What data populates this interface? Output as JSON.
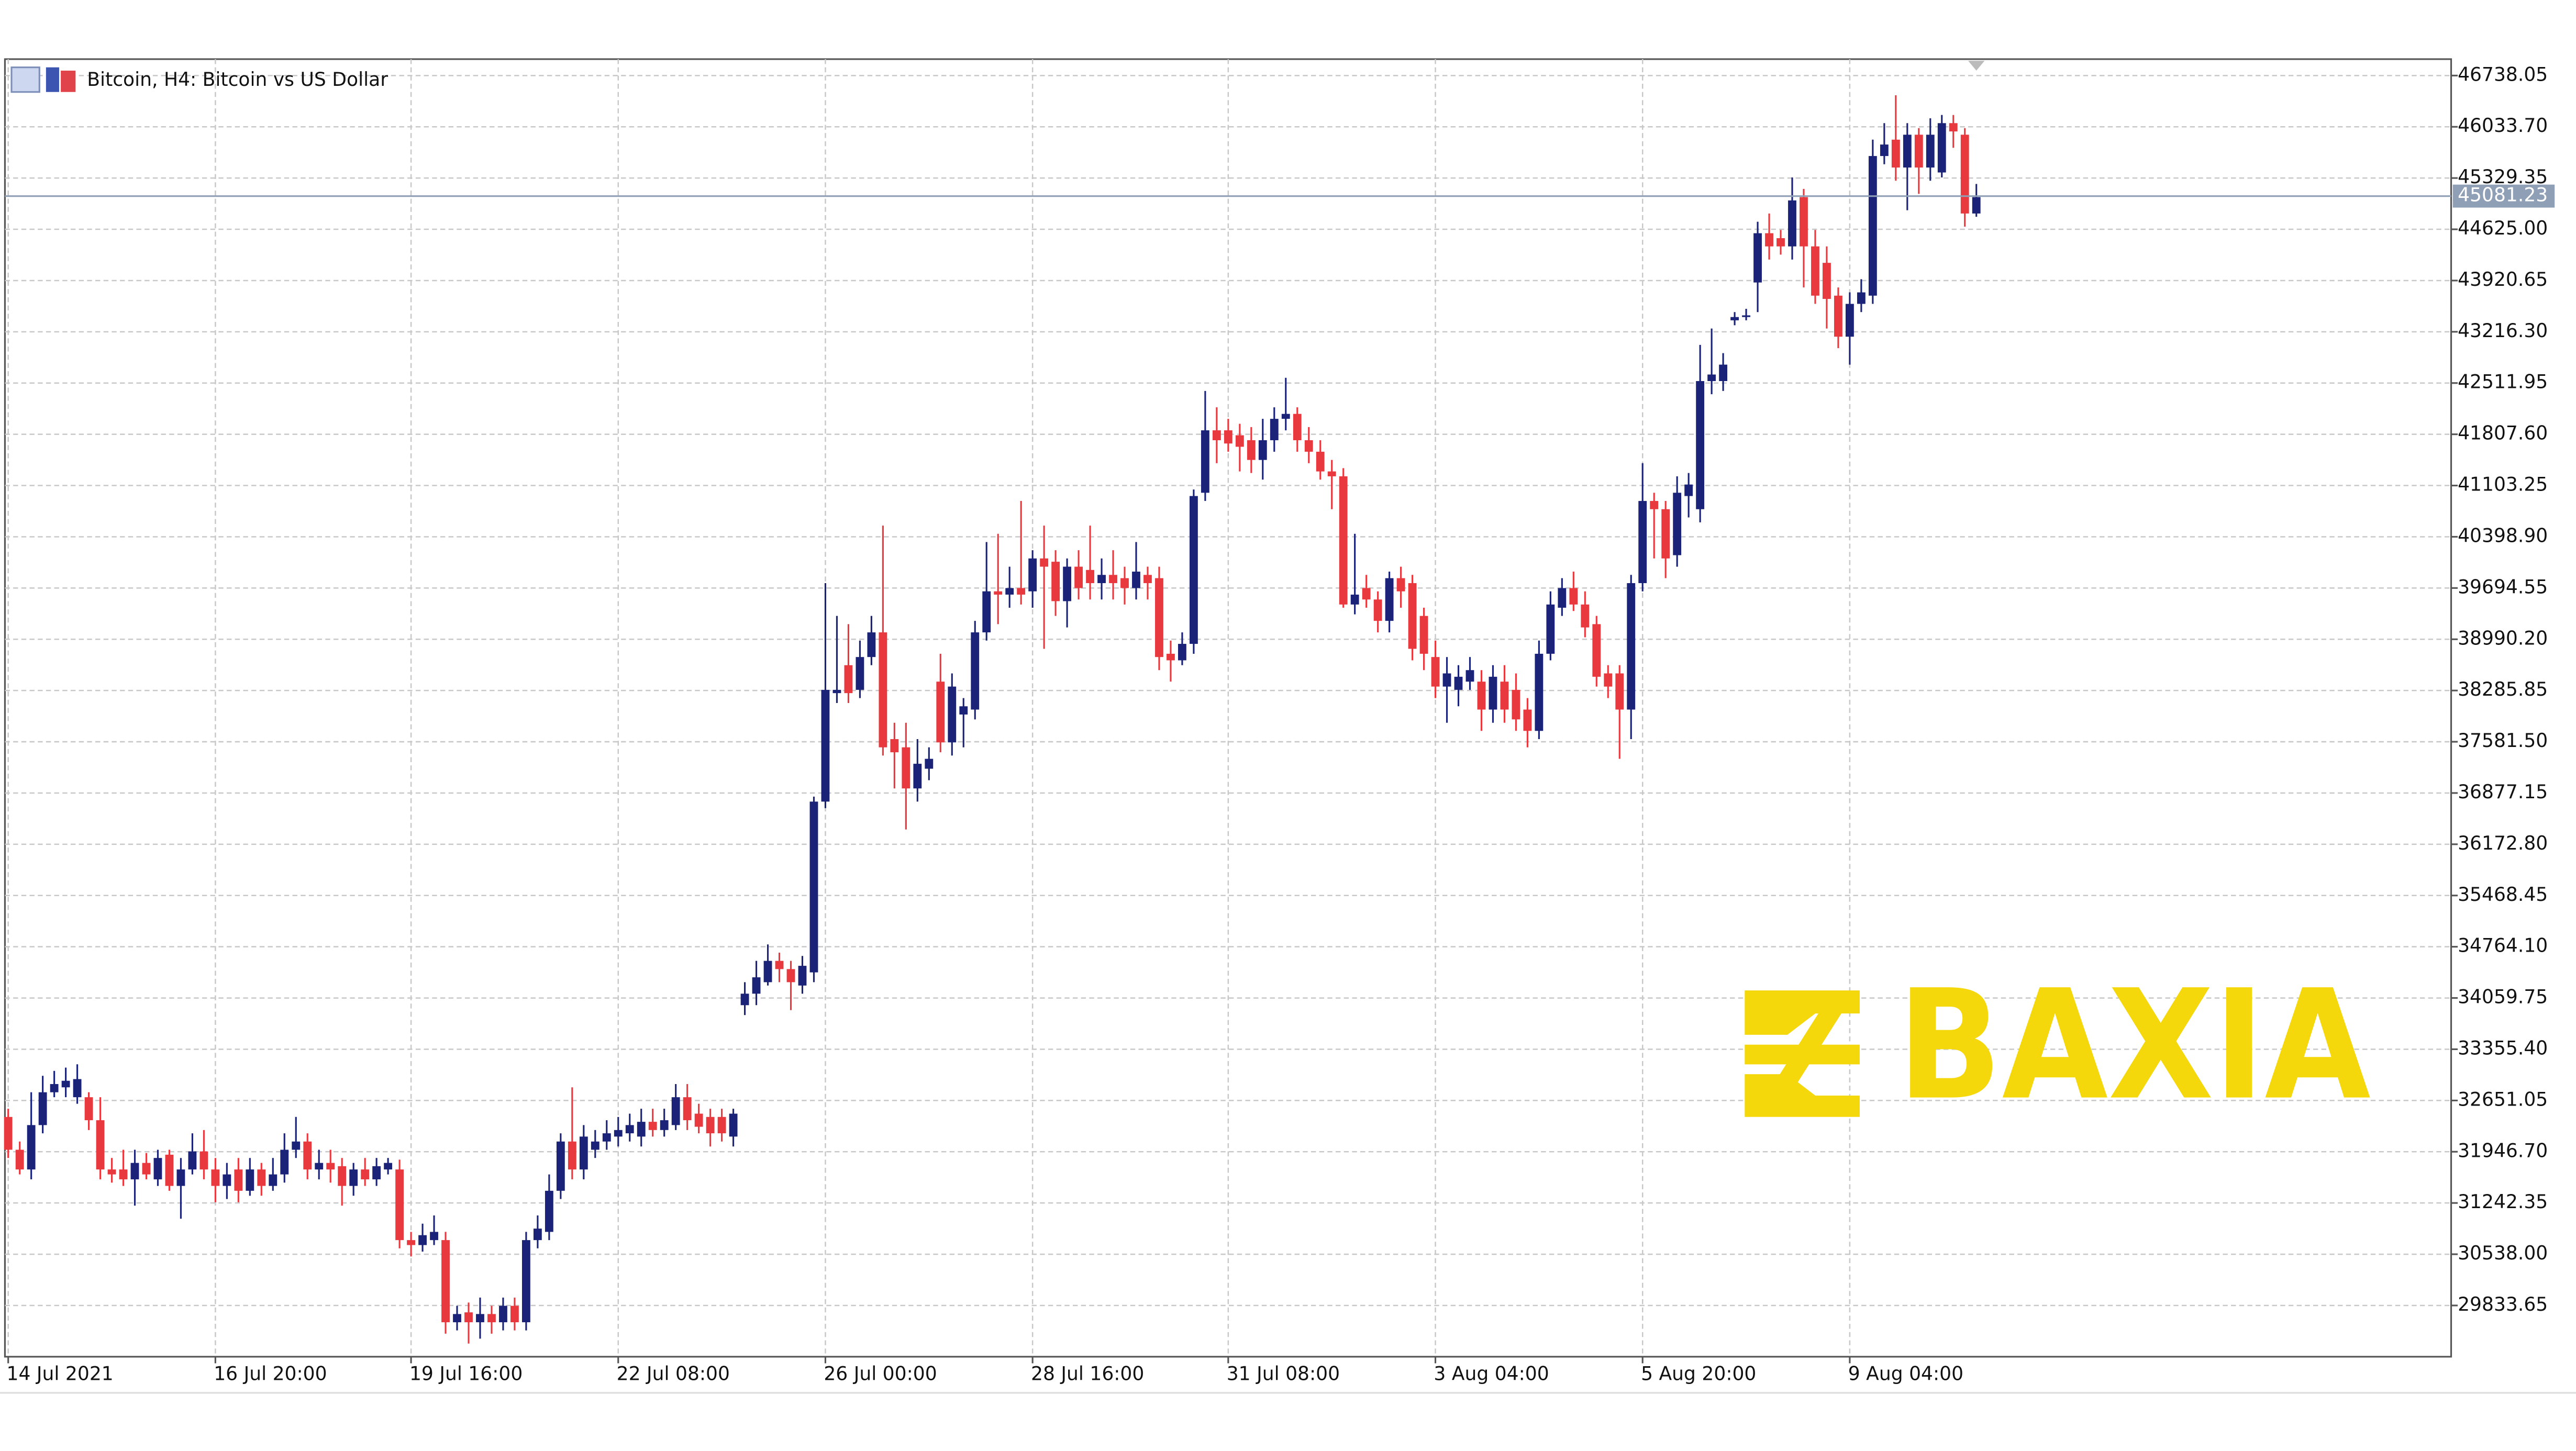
{
  "chart_data": {
    "type": "candlestick",
    "title": "Bitcoin, H4:  Bitcoin vs US Dollar",
    "watermark": "BAXIA",
    "up_color": "#1a2377",
    "down_color": "#e8393f",
    "grid": true,
    "current_price": 45081.23,
    "current_price_color": "#8f9fb6",
    "ylim": [
      29129.3,
      46963.8
    ],
    "yticks": [
      29833.65,
      {
        "value": 30538,
        "label": "30538.00"
      },
      31242.35,
      {
        "value": 31946.7,
        "label": "31946.70"
      },
      32651.05,
      {
        "value": 33355.4,
        "label": "33355.40"
      },
      34059.75,
      {
        "value": 34764.1,
        "label": "34764.10"
      },
      35468.45,
      {
        "value": 36172.8,
        "label": "36172.80"
      },
      36877.15,
      {
        "value": 37581.5,
        "label": "37581.50"
      },
      38285.85,
      {
        "value": 38990.2,
        "label": "38990.20"
      },
      39694.55,
      {
        "value": 40398.9,
        "label": "40398.90"
      },
      41103.25,
      {
        "value": 41807.6,
        "label": "41807.60"
      },
      42511.95,
      {
        "value": 43216.3,
        "label": "43216.30"
      },
      43920.65,
      {
        "value": 44625,
        "label": "44625.00"
      },
      45329.35,
      {
        "value": 46033.7,
        "label": "46033.70"
      },
      46738.05
    ],
    "categories": [
      "14 Jul 2021",
      null,
      null,
      null,
      null,
      null,
      null,
      null,
      null,
      null,
      null,
      null,
      null,
      null,
      null,
      null,
      null,
      null,
      "16 Jul 20:00",
      null,
      null,
      null,
      null,
      null,
      null,
      null,
      null,
      null,
      null,
      null,
      null,
      null,
      null,
      null,
      null,
      "19 Jul 16:00",
      null,
      null,
      null,
      null,
      null,
      null,
      null,
      null,
      null,
      null,
      null,
      null,
      null,
      null,
      null,
      null,
      null,
      "22 Jul 08:00",
      null,
      null,
      null,
      null,
      null,
      null,
      null,
      null,
      null,
      null,
      null,
      null,
      null,
      null,
      null,
      null,
      null,
      "26 Jul 00:00",
      null,
      null,
      null,
      null,
      null,
      null,
      null,
      null,
      null,
      null,
      null,
      null,
      null,
      null,
      null,
      null,
      null,
      "28 Jul 16:00",
      null,
      null,
      null,
      null,
      null,
      null,
      null,
      null,
      null,
      null,
      null,
      null,
      null,
      null,
      null,
      null,
      "31 Jul 08:00",
      null,
      null,
      null,
      null,
      null,
      null,
      null,
      null,
      null,
      null,
      null,
      null,
      null,
      null,
      null,
      null,
      null,
      "3 Aug 04:00",
      null,
      null,
      null,
      null,
      null,
      null,
      null,
      null,
      null,
      null,
      null,
      null,
      null,
      null,
      null,
      null,
      null,
      "5 Aug 20:00",
      null,
      null,
      null,
      null,
      null,
      null,
      null,
      null,
      null,
      null,
      null,
      null,
      null,
      null,
      null,
      null,
      null,
      "9 Aug 04:00",
      null,
      null,
      null,
      null,
      null,
      null,
      null,
      null,
      null,
      null,
      null
    ],
    "open": [
      32425,
      31974,
      31703,
      32313,
      32764,
      32832,
      32696,
      32696,
      32380,
      31703,
      31703,
      31567,
      31793,
      31567,
      31906,
      31477,
      31703,
      31951,
      31703,
      31477,
      31703,
      31410,
      31703,
      31477,
      31635,
      31974,
      32087,
      31703,
      31793,
      31748,
      31477,
      31703,
      31567,
      31703,
      31703,
      30732,
      30664,
      30732,
      30732,
      29603,
      29739,
      29603,
      29716,
      29603,
      29829,
      29603,
      30732,
      30845,
      31410,
      32087,
      31703,
      31974,
      32087,
      32155,
      32200,
      32155,
      32358,
      32245,
      32313,
      32696,
      32470,
      32425,
      32425,
      32155,
      33961,
      34119,
      34277,
      34570,
      34457,
      34231,
      34412,
      36759,
      38250,
      38634,
      38295,
      38746,
      39085,
      37618,
      37505,
      36940,
      37211,
      38408,
      37573,
      37956,
      38024,
      39085,
      39649,
      39604,
      39694,
      39649,
      40101,
      40056,
      39514,
      39988,
      39943,
      39762,
      39875,
      39830,
      39694,
      39875,
      39830,
      38791,
      38701,
      38927,
      41004,
      41862,
      41862,
      41794,
      41726,
      41455,
      41726,
      42020,
      42088,
      41726,
      41568,
      41297,
      41230,
      39468,
      39694,
      39537,
      39243,
      39830,
      39762,
      39311,
      38746,
      38340,
      38295,
      38408,
      38408,
      38024,
      38408,
      38295,
      38024,
      37731,
      38791,
      39424,
      39694,
      39468,
      39198,
      38521,
      38521,
      38024,
      39762,
      40891,
      40778,
      40146,
      40959,
      40778,
      42539,
      42539,
      43374,
      43419,
      43894,
      44571,
      44503,
      44390,
      45067,
      44390,
      44164,
      43713,
      43149,
      43600,
      43713,
      45632,
      45857,
      45474,
      45925,
      45474,
      45406,
      46084,
      45925,
      44842
    ],
    "high": [
      32538,
      32087,
      32764,
      32990,
      33058,
      33103,
      33148,
      32764,
      32696,
      31861,
      31974,
      31974,
      31929,
      31974,
      31974,
      31861,
      32200,
      32245,
      31861,
      31793,
      31861,
      31861,
      31793,
      31861,
      32200,
      32425,
      32200,
      31974,
      31974,
      31861,
      31793,
      31861,
      31861,
      31861,
      31838,
      30845,
      30958,
      31071,
      30845,
      29829,
      29874,
      29942,
      29829,
      29942,
      29942,
      30845,
      31071,
      31635,
      32200,
      32832,
      32313,
      32245,
      32380,
      32425,
      32470,
      32538,
      32538,
      32538,
      32877,
      32877,
      32606,
      32538,
      32538,
      32538,
      34277,
      34570,
      34796,
      34683,
      34570,
      34638,
      36827,
      39762,
      39311,
      39198,
      38972,
      39311,
      40552,
      37843,
      37843,
      37618,
      37505,
      38791,
      38521,
      38182,
      39243,
      40327,
      40440,
      39988,
      40891,
      40214,
      40552,
      40214,
      40101,
      40214,
      40552,
      40101,
      40214,
      39988,
      40327,
      39988,
      39988,
      38972,
      39085,
      41049,
      42403,
      42178,
      42020,
      41952,
      41907,
      42020,
      42178,
      42584,
      42178,
      41907,
      41726,
      41455,
      41342,
      40440,
      39875,
      39649,
      39920,
      39988,
      39875,
      39424,
      38972,
      38746,
      38634,
      38746,
      38566,
      38634,
      38634,
      38521,
      38182,
      38972,
      39649,
      39830,
      39920,
      39649,
      39311,
      38634,
      38634,
      39875,
      41410,
      41004,
      40891,
      41230,
      41275,
      43036,
      43261,
      42923,
      43487,
      43532,
      44729,
      44842,
      44616,
      45338,
      45180,
      44616,
      44390,
      43826,
      43758,
      43939,
      45857,
      46084,
      46467,
      46084,
      46016,
      46151,
      46196,
      46196,
      46016,
      45248
    ],
    "low": [
      31861,
      31635,
      31567,
      32200,
      32696,
      32696,
      32606,
      32245,
      31567,
      31522,
      31477,
      31206,
      31567,
      31477,
      31410,
      31026,
      31635,
      31567,
      31252,
      31297,
      31252,
      31342,
      31342,
      31410,
      31522,
      31861,
      31567,
      31567,
      31522,
      31206,
      31342,
      31477,
      31477,
      31635,
      30619,
      30507,
      30574,
      30664,
      29446,
      29491,
      29310,
      29378,
      29446,
      29491,
      29491,
      29491,
      30619,
      30732,
      31297,
      31567,
      31567,
      31861,
      31974,
      32019,
      32087,
      32019,
      32155,
      32155,
      32245,
      32245,
      32200,
      32019,
      32087,
      32019,
      33825,
      33961,
      34231,
      34277,
      33893,
      34119,
      34277,
      36669,
      38114,
      38114,
      38182,
      38634,
      37392,
      36940,
      36376,
      36759,
      37053,
      37437,
      37392,
      37505,
      37889,
      38972,
      39198,
      39424,
      39468,
      39424,
      38859,
      39311,
      39153,
      39537,
      39537,
      39537,
      39537,
      39468,
      39537,
      39537,
      38566,
      38408,
      38634,
      38791,
      40891,
      41410,
      41568,
      41297,
      41275,
      41185,
      41568,
      41862,
      41568,
      41410,
      41185,
      40778,
      39424,
      39333,
      39424,
      39085,
      39085,
      39424,
      38701,
      38566,
      38182,
      37843,
      38069,
      38295,
      37731,
      37843,
      37843,
      37731,
      37505,
      37618,
      38701,
      39311,
      39379,
      39017,
      38340,
      38182,
      37347,
      37618,
      39649,
      40101,
      39830,
      39988,
      40665,
      40597,
      42358,
      42403,
      43306,
      43374,
      43487,
      44209,
      44277,
      44209,
      43826,
      43600,
      43261,
      42991,
      42765,
      43487,
      43600,
      45519,
      45293,
      44887,
      45112,
      45293,
      45338,
      45745,
      44661,
      44797
    ],
    "close": [
      31974,
      31703,
      32313,
      32764,
      32877,
      32922,
      32945,
      32380,
      31703,
      31635,
      31567,
      31793,
      31635,
      31861,
      31477,
      31703,
      31951,
      31703,
      31477,
      31635,
      31410,
      31703,
      31477,
      31635,
      31974,
      32087,
      31703,
      31793,
      31703,
      31477,
      31703,
      31567,
      31748,
      31793,
      30732,
      30664,
      30800,
      30845,
      29603,
      29716,
      29603,
      29716,
      29603,
      29829,
      29603,
      30732,
      30890,
      31410,
      32087,
      31703,
      32155,
      32087,
      32200,
      32245,
      32313,
      32358,
      32245,
      32380,
      32696,
      32380,
      32290,
      32200,
      32200,
      32470,
      34119,
      34344,
      34570,
      34457,
      34277,
      34502,
      36759,
      38295,
      38295,
      38250,
      38746,
      39085,
      37505,
      37437,
      36940,
      37279,
      37347,
      37573,
      38340,
      38069,
      39085,
      39649,
      39604,
      39694,
      39604,
      40101,
      39988,
      39514,
      39988,
      39694,
      39762,
      39875,
      39762,
      39694,
      39920,
      39762,
      38746,
      38701,
      38927,
      40959,
      41862,
      41726,
      41681,
      41636,
      41455,
      41726,
      42020,
      42088,
      41726,
      41568,
      41297,
      41230,
      39468,
      39604,
      39537,
      39243,
      39830,
      39649,
      38859,
      38791,
      38340,
      38521,
      38475,
      38566,
      38024,
      38475,
      38024,
      37889,
      37731,
      38791,
      39468,
      39694,
      39468,
      39153,
      38475,
      38340,
      38024,
      39762,
      40891,
      40778,
      40101,
      41004,
      41117,
      42539,
      42629,
      42765,
      43419,
      43442,
      44571,
      44390,
      44390,
      45022,
      44390,
      43713,
      43668,
      43149,
      43600,
      43758,
      45632,
      45790,
      45474,
      45925,
      45474,
      45925,
      46084,
      45970,
      44842,
      45067
    ]
  }
}
